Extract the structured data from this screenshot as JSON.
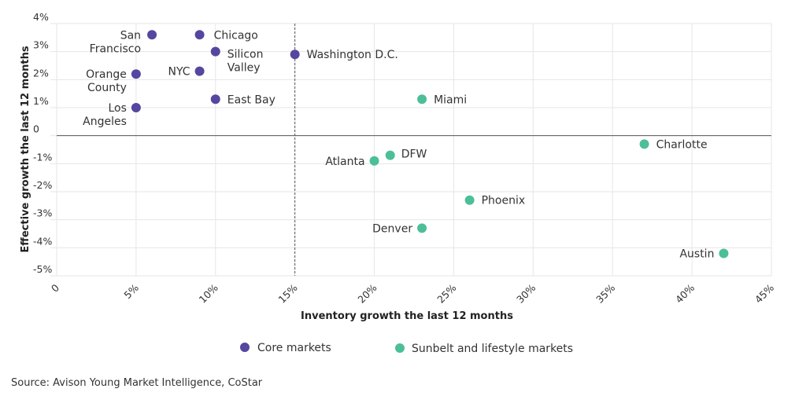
{
  "chart_data": {
    "type": "scatter",
    "xlabel": "Inventory growth the last 12 months",
    "ylabel": "Effective growth the last 12 months",
    "xlim": [
      0,
      45
    ],
    "ylim": [
      -5,
      4
    ],
    "x_ticks": [
      "0",
      "5%",
      "10%",
      "15%",
      "20%",
      "25%",
      "30%",
      "35%",
      "40%",
      "45%"
    ],
    "y_ticks": [
      "4%",
      "3%",
      "2%",
      "1%",
      "0",
      "-1%",
      "-2%",
      "-3%",
      "-4%",
      "-5%"
    ],
    "grid": true,
    "reference_lines": {
      "vertical_x": 15,
      "horizontal_y": 0
    },
    "legend_placement": "bottom",
    "series": [
      {
        "name": "Core markets",
        "color": "#5646a0",
        "points": [
          {
            "label": "San Francisco",
            "x": 6,
            "y": 3.6
          },
          {
            "label": "Chicago",
            "x": 9,
            "y": 3.6
          },
          {
            "label": "Silicon Valley",
            "x": 10,
            "y": 3.0
          },
          {
            "label": "Washington D.C.",
            "x": 15,
            "y": 2.9
          },
          {
            "label": "NYC",
            "x": 9,
            "y": 2.3
          },
          {
            "label": "Orange County",
            "x": 5,
            "y": 2.2
          },
          {
            "label": "East Bay",
            "x": 10,
            "y": 1.3
          },
          {
            "label": "Los Angeles",
            "x": 5,
            "y": 1.0
          }
        ]
      },
      {
        "name": "Sunbelt and lifestyle markets",
        "color": "#4cbf98",
        "points": [
          {
            "label": "Miami",
            "x": 23,
            "y": 1.3
          },
          {
            "label": "Charlotte",
            "x": 37,
            "y": -0.3
          },
          {
            "label": "DFW",
            "x": 21,
            "y": -0.7
          },
          {
            "label": "Atlanta",
            "x": 20,
            "y": -0.9
          },
          {
            "label": "Phoenix",
            "x": 26,
            "y": -2.3
          },
          {
            "label": "Denver",
            "x": 23,
            "y": -3.3
          },
          {
            "label": "Austin",
            "x": 42,
            "y": -4.2
          }
        ]
      }
    ]
  },
  "source": "Source: Avison Young Market Intelligence, CoStar"
}
